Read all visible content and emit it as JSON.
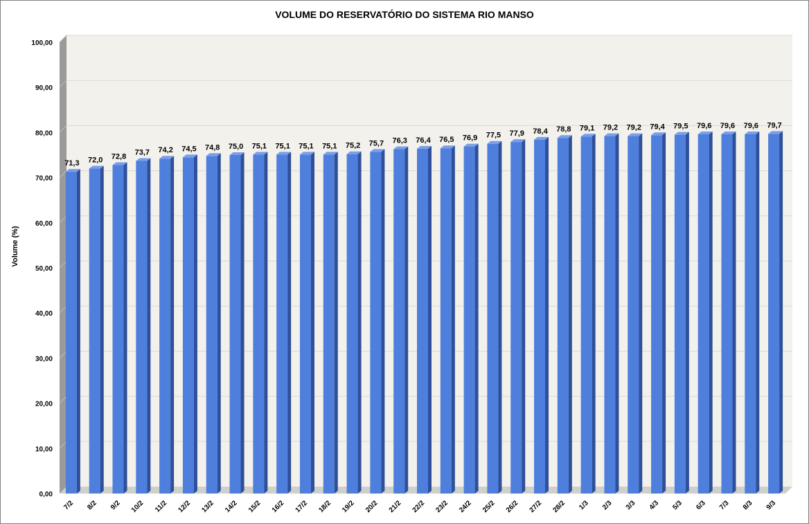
{
  "chart_data": {
    "type": "bar",
    "title": "VOLUME DO RESERVATÓRIO DO SISTEMA RIO MANSO",
    "xlabel": "",
    "ylabel": "Volume (%)",
    "ylim": [
      0,
      100
    ],
    "yticks": [
      "0,00",
      "10,00",
      "20,00",
      "30,00",
      "40,00",
      "50,00",
      "60,00",
      "70,00",
      "80,00",
      "90,00",
      "100,00"
    ],
    "grid": true,
    "categories": [
      "7/2",
      "8/2",
      "9/2",
      "10/2",
      "11/2",
      "12/2",
      "13/2",
      "14/2",
      "15/2",
      "16/2",
      "17/2",
      "18/2",
      "19/2",
      "20/2",
      "21/2",
      "22/2",
      "23/2",
      "24/2",
      "25/2",
      "26/2",
      "27/2",
      "28/2",
      "1/3",
      "2/3",
      "3/3",
      "4/3",
      "5/3",
      "6/3",
      "7/3",
      "8/3",
      "9/3"
    ],
    "values": [
      71.3,
      72.0,
      72.8,
      73.7,
      74.2,
      74.5,
      74.8,
      75.0,
      75.1,
      75.1,
      75.1,
      75.1,
      75.2,
      75.7,
      76.3,
      76.4,
      76.5,
      76.9,
      77.5,
      77.9,
      78.4,
      78.8,
      79.1,
      79.2,
      79.2,
      79.4,
      79.5,
      79.6,
      79.6,
      79.6,
      79.7
    ],
    "value_labels": [
      "71,3",
      "72,0",
      "72,8",
      "73,7",
      "74,2",
      "74,5",
      "74,8",
      "75,0",
      "75,1",
      "75,1",
      "75,1",
      "75,1",
      "75,2",
      "75,7",
      "76,3",
      "76,4",
      "76,5",
      "76,9",
      "77,5",
      "77,9",
      "78,4",
      "78,8",
      "79,1",
      "79,2",
      "79,2",
      "79,4",
      "79,5",
      "79,6",
      "79,6",
      "79,6",
      "79,7"
    ],
    "colors": {
      "bar_front": "#4f7fdd",
      "bar_side": "#2e4f9a",
      "bar_top": "#7a9ee8",
      "plot_back": "#f3f1ec",
      "wall_side": "#9a9a98",
      "floor": "#cfcfcb",
      "grid": "#d9d9d6"
    }
  }
}
